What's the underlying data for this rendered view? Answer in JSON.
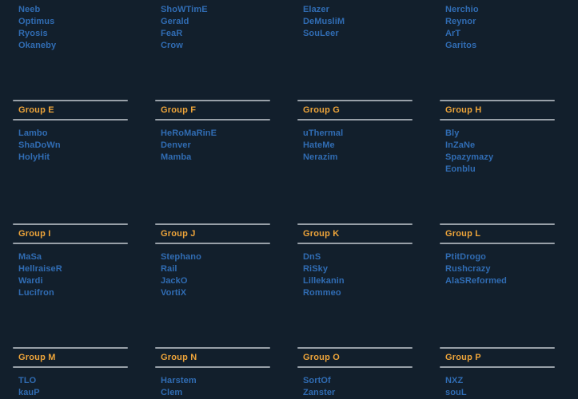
{
  "theme": {
    "background": "#121f2c",
    "group_header_gold": "#eda43a",
    "player_link_blue": "#306cb3",
    "divider_gray": "#98a0a8"
  },
  "rows": [
    {
      "groups": [
        {
          "header": "",
          "players": [
            "Neeb",
            "Optimus",
            "Ryosis",
            "Okaneby"
          ]
        },
        {
          "header": "",
          "players": [
            "ShoWTimE",
            "Gerald",
            "FeaR",
            "Crow"
          ]
        },
        {
          "header": "",
          "players": [
            "Elazer",
            "DeMusliM",
            "SouLeer"
          ]
        },
        {
          "header": "",
          "players": [
            "Nerchio",
            "Reynor",
            "ArT",
            "Garitos"
          ]
        }
      ]
    },
    {
      "groups": [
        {
          "header": "Group E",
          "players": [
            "Lambo",
            "ShaDoWn",
            "HolyHit"
          ]
        },
        {
          "header": "Group F",
          "players": [
            "HeRoMaRinE",
            "Denver",
            "Mamba"
          ]
        },
        {
          "header": "Group G",
          "players": [
            "uThermal",
            "HateMe",
            "Nerazim"
          ]
        },
        {
          "header": "Group H",
          "players": [
            "Bly",
            "InZaNe",
            "Spazymazy",
            "Eonblu"
          ]
        }
      ]
    },
    {
      "groups": [
        {
          "header": "Group I",
          "players": [
            "MaSa",
            "HellraiseR",
            "Wardi",
            "Lucifron"
          ]
        },
        {
          "header": "Group J",
          "players": [
            "Stephano",
            "Rail",
            "JackO",
            "VortiX"
          ]
        },
        {
          "header": "Group K",
          "players": [
            "DnS",
            "RiSky",
            "Lillekanin",
            "Rommeo"
          ]
        },
        {
          "header": "Group L",
          "players": [
            "PtitDrogo",
            "Rushcrazy",
            "AlaSReformed"
          ]
        }
      ]
    },
    {
      "groups": [
        {
          "header": "Group M",
          "players": [
            "TLO",
            "kauP"
          ]
        },
        {
          "header": "Group N",
          "players": [
            "Harstem",
            "Clem"
          ]
        },
        {
          "header": "Group O",
          "players": [
            "SortOf",
            "Zanster"
          ]
        },
        {
          "header": "Group P",
          "players": [
            "NXZ",
            "souL"
          ]
        }
      ]
    }
  ],
  "layout": {
    "row_tops": [
      -30,
      125,
      280,
      435
    ],
    "column_lefts": [
      16,
      194,
      372,
      550
    ]
  }
}
